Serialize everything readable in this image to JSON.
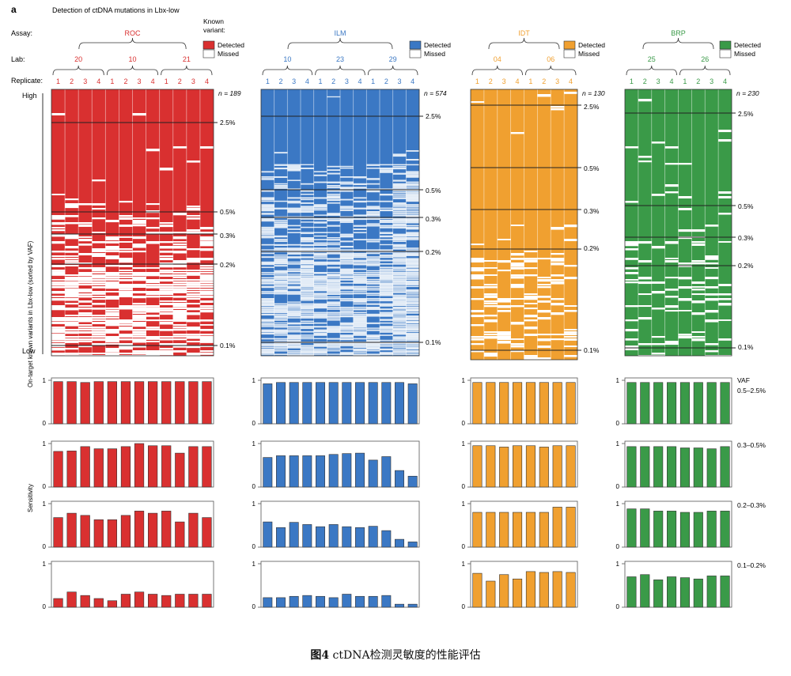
{
  "figure": {
    "panel_letter": "a",
    "title": "Detection of ctDNA mutations in Lbx-low",
    "row_labels": {
      "assay": "Assay:",
      "lab": "Lab:",
      "replicate": "Replicate:"
    },
    "legend_title": "Known variant:",
    "legend_detected": "Detected",
    "legend_missed": "Missed",
    "y_axis_label": "On-target known variants in Lbx-low (sorted by VAF)",
    "y_high": "High",
    "y_low": "Low",
    "sensitivity_label": "Sensitivity",
    "vaf_label": "VAF",
    "caption_prefix": "图4",
    "caption_text": " ctDNA检测灵敏度的性能评估"
  },
  "colors": {
    "ROC": "#d93030",
    "ILM": "#3b78c4",
    "IDT": "#f0a030",
    "BRP": "#3a9a48"
  },
  "chart_data": {
    "type": "bar",
    "vaf_bins": [
      "0.5–2.5%",
      "0.3–0.5%",
      "0.2–0.3%",
      "0.1–0.2%"
    ],
    "ylim": [
      0,
      1
    ],
    "yticks": [
      "0",
      "1"
    ],
    "assays": [
      {
        "name": "ROC",
        "n_label": "n = 189",
        "labs": [
          {
            "name": "20",
            "replicates": [
              "1",
              "2",
              "3",
              "4"
            ]
          },
          {
            "name": "10",
            "replicates": [
              "1",
              "2",
              "3",
              "4"
            ]
          },
          {
            "name": "21",
            "replicates": [
              "1",
              "2",
              "3",
              "4"
            ]
          }
        ],
        "vaf_marks": [
          "2.5%",
          "0.5%",
          "0.3%",
          "0.2%",
          "0.1%"
        ],
        "sensitivity": [
          [
            0.97,
            0.97,
            0.95,
            0.97,
            0.97,
            0.97,
            0.97,
            0.97,
            0.97,
            0.97,
            0.97,
            0.97
          ],
          [
            0.82,
            0.83,
            0.93,
            0.88,
            0.88,
            0.93,
            1.0,
            0.95,
            0.95,
            0.78,
            0.93,
            0.93
          ],
          [
            0.68,
            0.78,
            0.73,
            0.63,
            0.63,
            0.73,
            0.83,
            0.78,
            0.83,
            0.58,
            0.78,
            0.68
          ],
          [
            0.2,
            0.35,
            0.27,
            0.2,
            0.15,
            0.3,
            0.35,
            0.3,
            0.27,
            0.3,
            0.3,
            0.3
          ]
        ]
      },
      {
        "name": "ILM",
        "n_label": "n = 574",
        "labs": [
          {
            "name": "10",
            "replicates": [
              "1",
              "2",
              "3",
              "4"
            ]
          },
          {
            "name": "23",
            "replicates": [
              "1",
              "2",
              "3",
              "4"
            ]
          },
          {
            "name": "29",
            "replicates": [
              "1",
              "2",
              "3",
              "4"
            ]
          }
        ],
        "vaf_marks": [
          "2.5%",
          "0.5%",
          "0.3%",
          "0.2%",
          "0.1%"
        ],
        "sensitivity": [
          [
            0.92,
            0.95,
            0.95,
            0.95,
            0.95,
            0.95,
            0.95,
            0.95,
            0.95,
            0.95,
            0.95,
            0.92
          ],
          [
            0.68,
            0.72,
            0.72,
            0.72,
            0.72,
            0.75,
            0.77,
            0.78,
            0.62,
            0.7,
            0.38,
            0.25
          ],
          [
            0.58,
            0.45,
            0.57,
            0.52,
            0.47,
            0.52,
            0.47,
            0.45,
            0.48,
            0.38,
            0.18,
            0.12
          ],
          [
            0.22,
            0.22,
            0.25,
            0.27,
            0.25,
            0.22,
            0.3,
            0.25,
            0.25,
            0.27,
            0.07,
            0.07
          ]
        ]
      },
      {
        "name": "IDT",
        "n_label": "n = 130",
        "labs": [
          {
            "name": "04",
            "replicates": [
              "1",
              "2",
              "3",
              "4"
            ]
          },
          {
            "name": "06",
            "replicates": [
              "1",
              "2",
              "3",
              "4"
            ]
          }
        ],
        "vaf_marks": [
          "2.5%",
          "0.5%",
          "0.3%",
          "0.2%",
          "0.1%"
        ],
        "sensitivity": [
          [
            0.95,
            0.95,
            0.95,
            0.95,
            0.95,
            0.95,
            0.95,
            0.95
          ],
          [
            0.95,
            0.95,
            0.92,
            0.95,
            0.95,
            0.92,
            0.95,
            0.95
          ],
          [
            0.8,
            0.8,
            0.8,
            0.8,
            0.8,
            0.8,
            0.92,
            0.92
          ],
          [
            0.78,
            0.6,
            0.75,
            0.65,
            0.82,
            0.8,
            0.82,
            0.8
          ]
        ]
      },
      {
        "name": "BRP",
        "n_label": "n = 230",
        "labs": [
          {
            "name": "25",
            "replicates": [
              "1",
              "2",
              "3",
              "4"
            ]
          },
          {
            "name": "26",
            "replicates": [
              "1",
              "2",
              "3",
              "4"
            ]
          }
        ],
        "vaf_marks": [
          "2.5%",
          "0.5%",
          "0.3%",
          "0.2%",
          "0.1%"
        ],
        "sensitivity": [
          [
            0.95,
            0.95,
            0.95,
            0.95,
            0.95,
            0.95,
            0.95,
            0.95
          ],
          [
            0.93,
            0.93,
            0.93,
            0.93,
            0.9,
            0.9,
            0.88,
            0.93
          ],
          [
            0.88,
            0.88,
            0.83,
            0.83,
            0.8,
            0.8,
            0.83,
            0.83
          ],
          [
            0.7,
            0.75,
            0.63,
            0.7,
            0.68,
            0.65,
            0.72,
            0.72
          ]
        ]
      }
    ]
  }
}
